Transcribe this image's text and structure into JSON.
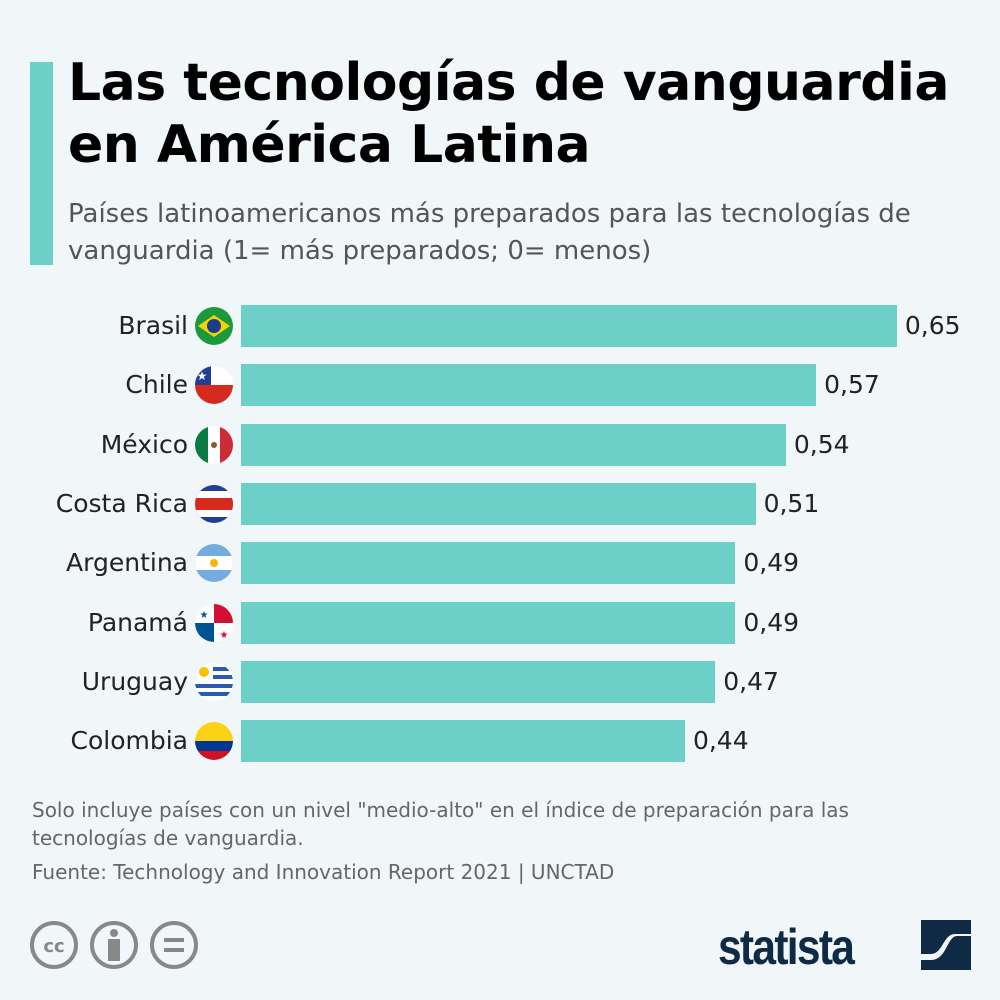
{
  "title": "Las tecnologías de vanguardia en América Latina",
  "subtitle": "Países latinoamericanos más preparados para las tecnologías de vanguardia (1= más preparados; 0= menos)",
  "colors": {
    "bar": "#6dd0c8",
    "background": "#f1f6f9",
    "brand": "#0f2a44"
  },
  "chart_data": {
    "type": "bar",
    "orientation": "horizontal",
    "categories": [
      "Brasil",
      "Chile",
      "México",
      "Costa Rica",
      "Argentina",
      "Panamá",
      "Uruguay",
      "Colombia"
    ],
    "values": [
      0.65,
      0.57,
      0.54,
      0.51,
      0.49,
      0.49,
      0.47,
      0.44
    ],
    "labels": [
      "0,65",
      "0,57",
      "0,54",
      "0,51",
      "0,49",
      "0,49",
      "0,47",
      "0,44"
    ],
    "flags": [
      "brazil-flag",
      "chile-flag",
      "mexico-flag",
      "costa-rica-flag",
      "argentina-flag",
      "panama-flag",
      "uruguay-flag",
      "colombia-flag"
    ],
    "xlim": [
      0,
      1
    ],
    "grid": false
  },
  "note": "Solo incluye países con un nivel \"medio-alto\" en el índice de preparación para las tecnologías de vanguardia.",
  "source": "Fuente: Technology and Innovation Report 2021 | UNCTAD",
  "logo": "statista"
}
